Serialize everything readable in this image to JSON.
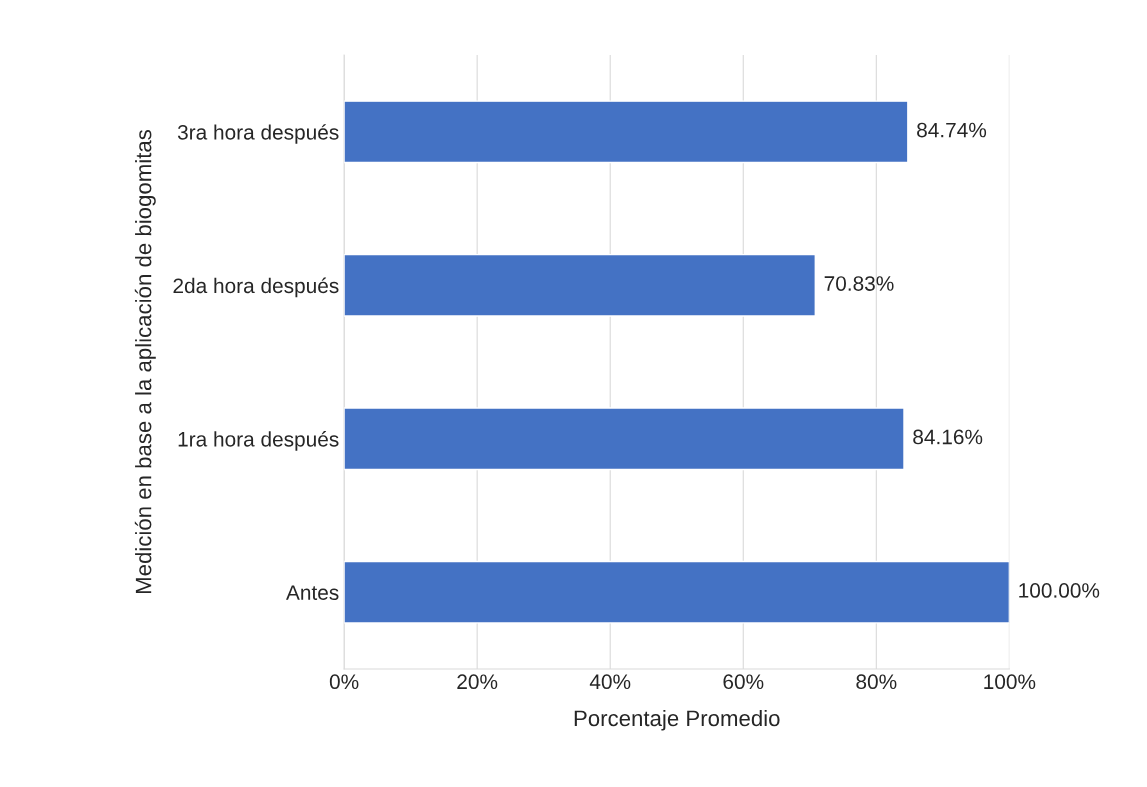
{
  "chart_data": {
    "type": "bar",
    "orientation": "horizontal",
    "categories": [
      "3ra hora después",
      "2da hora después",
      "1ra hora después",
      "Antes"
    ],
    "values": [
      84.74,
      70.83,
      84.16,
      100
    ],
    "value_labels": [
      "84.74%",
      "70.83%",
      "84.16%",
      "100.00%"
    ],
    "color": "#4472c4",
    "xlabel": "Porcentaje Promedio",
    "ylabel": "Medición en base a la aplicación de biogomitas",
    "xlim": [
      0,
      100
    ],
    "xticks": [
      {
        "value": 0,
        "label": "0%"
      },
      {
        "value": 20,
        "label": "20%"
      },
      {
        "value": 40,
        "label": "40%"
      },
      {
        "value": 60,
        "label": "60%"
      },
      {
        "value": 80,
        "label": "80%"
      },
      {
        "value": 100,
        "label": "100%"
      }
    ],
    "grid": "x"
  }
}
